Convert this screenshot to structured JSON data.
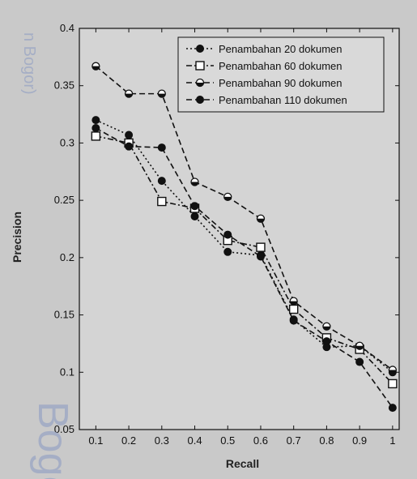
{
  "chart_data": {
    "type": "line",
    "xlabel": "Recall",
    "ylabel": "Precision",
    "x": [
      0.1,
      0.2,
      0.3,
      0.4,
      0.5,
      0.6,
      0.7,
      0.8,
      0.9,
      1
    ],
    "xticks": [
      "0.1",
      "0.2",
      "0.3",
      "0.4",
      "0.5",
      "0.6",
      "0.7",
      "0.8",
      "0.9",
      "1"
    ],
    "yticks": [
      "0.05",
      "0.1",
      "0.15",
      "0.2",
      "0.25",
      "0.3",
      "0.35",
      "0.4"
    ],
    "xlim": [
      0.05,
      1.02
    ],
    "ylim": [
      0.05,
      0.4
    ],
    "grid": false,
    "legend_position": "top-right",
    "series": [
      {
        "name": "Penambahan 20 dokumen",
        "values": [
          0.32,
          0.307,
          0.267,
          0.236,
          0.205,
          0.202,
          0.146,
          0.122,
          0.123,
          0.1
        ],
        "line_style": "dotted",
        "marker": "filled-circle",
        "color": "#111111"
      },
      {
        "name": "Penambahan 60 dokumen",
        "values": [
          0.306,
          0.3,
          0.249,
          0.243,
          0.215,
          0.209,
          0.155,
          0.13,
          0.12,
          0.09
        ],
        "line_style": "dash-dot",
        "marker": "open-square",
        "color": "#111111"
      },
      {
        "name": "Penambahan 90 dokumen",
        "values": [
          0.367,
          0.343,
          0.343,
          0.266,
          0.253,
          0.234,
          0.162,
          0.14,
          0.123,
          0.102
        ],
        "line_style": "dashed",
        "marker": "half-circle",
        "color": "#111111"
      },
      {
        "name": "Penambahan 110 dokumen",
        "values": [
          0.313,
          0.297,
          0.296,
          0.245,
          0.22,
          0.201,
          0.145,
          0.127,
          0.109,
          0.069
        ],
        "line_style": "dashed",
        "marker": "filled-circle",
        "color": "#111111"
      }
    ]
  },
  "watermark": {
    "top_text": "n Bogor)",
    "bottom_text": "Bogo"
  },
  "colors": {
    "background": "#c9c9c9",
    "plot_background": "#d4d4d4",
    "ink": "#111111",
    "watermark": "#9aa6c4"
  }
}
